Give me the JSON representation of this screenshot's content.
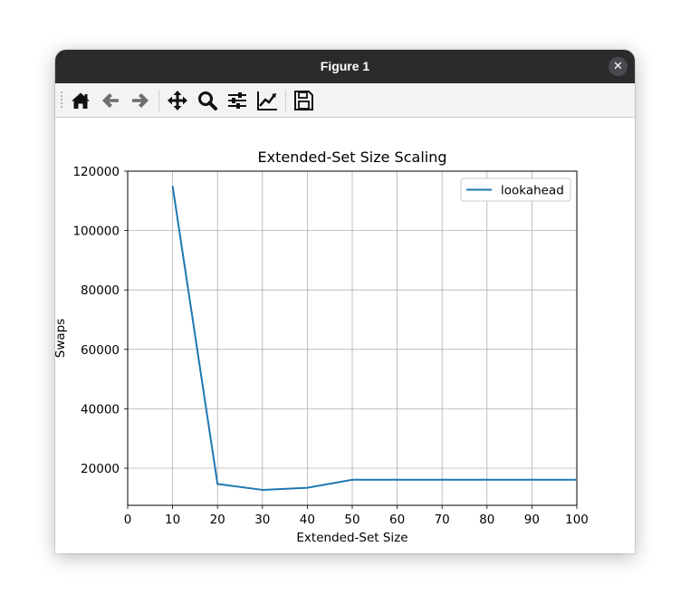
{
  "window": {
    "title": "Figure 1",
    "close_glyph": "✕"
  },
  "toolbar": {
    "buttons": [
      {
        "icon": "home-icon",
        "label": "Home"
      },
      {
        "icon": "back-arrow-icon",
        "label": "Back"
      },
      {
        "icon": "forward-arrow-icon",
        "label": "Forward"
      },
      {
        "icon": "pan-icon",
        "label": "Pan"
      },
      {
        "icon": "zoom-icon",
        "label": "Zoom"
      },
      {
        "icon": "subplots-icon",
        "label": "Configure subplots"
      },
      {
        "icon": "axes-icon",
        "label": "Edit axis"
      },
      {
        "icon": "save-icon",
        "label": "Save"
      }
    ]
  },
  "chart_data": {
    "type": "line",
    "title": "Extended-Set Size Scaling",
    "xlabel": "Extended-Set Size",
    "ylabel": "Swaps",
    "xlim": [
      0,
      100
    ],
    "ylim": [
      7500,
      120000
    ],
    "xticks": [
      0,
      10,
      20,
      30,
      40,
      50,
      60,
      70,
      80,
      90,
      100
    ],
    "yticks": [
      20000,
      40000,
      60000,
      80000,
      100000,
      120000
    ],
    "grid": true,
    "legend_position": "top-right",
    "series": [
      {
        "name": "lookahead",
        "color": "#1f77b4",
        "x": [
          10,
          20,
          30,
          40,
          50,
          60,
          70,
          80,
          90,
          100
        ],
        "y": [
          115000,
          14700,
          12700,
          13400,
          16100,
          16100,
          16100,
          16100,
          16100,
          16100
        ]
      }
    ]
  }
}
